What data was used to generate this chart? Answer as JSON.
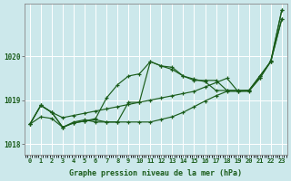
{
  "background_color": "#cce8eb",
  "grid_color": "#ffffff",
  "line_color": "#1a5c1a",
  "marker_color": "#1a5c1a",
  "xlabel": "Graphe pression niveau de la mer (hPa)",
  "xlabel_color": "#1a5c1a",
  "ylabel_color": "#1a5c1a",
  "xlim": [
    -0.5,
    23.5
  ],
  "ylim": [
    1017.75,
    1021.2
  ],
  "yticks": [
    1018,
    1019,
    1020
  ],
  "xticks": [
    0,
    1,
    2,
    3,
    4,
    5,
    6,
    7,
    8,
    9,
    10,
    11,
    12,
    13,
    14,
    15,
    16,
    17,
    18,
    19,
    20,
    21,
    22,
    23
  ],
  "series": [
    {
      "x": [
        0,
        1,
        2,
        3,
        4,
        5,
        6,
        7,
        8,
        9,
        10,
        11,
        12,
        13,
        14,
        15,
        16,
        17,
        18,
        19,
        20,
        21,
        22,
        23
      ],
      "y": [
        1018.45,
        1018.88,
        1018.72,
        1018.6,
        1018.65,
        1018.7,
        1018.75,
        1018.8,
        1018.85,
        1018.9,
        1018.95,
        1019.0,
        1019.05,
        1019.1,
        1019.15,
        1019.2,
        1019.3,
        1019.4,
        1019.5,
        1019.2,
        1019.2,
        1019.5,
        1019.9,
        1021.05
      ]
    },
    {
      "x": [
        0,
        1,
        2,
        3,
        4,
        5,
        6,
        7,
        8,
        9,
        10,
        11,
        12,
        13,
        14,
        15,
        16,
        17,
        18,
        19,
        20,
        21,
        22,
        23
      ],
      "y": [
        1018.45,
        1018.88,
        1018.72,
        1018.38,
        1018.48,
        1018.52,
        1018.58,
        1019.05,
        1019.35,
        1019.55,
        1019.6,
        1019.88,
        1019.78,
        1019.75,
        1019.55,
        1019.45,
        1019.45,
        1019.45,
        1019.22,
        1019.22,
        1019.22,
        1019.5,
        1019.88,
        1020.85
      ]
    },
    {
      "x": [
        0,
        1,
        2,
        3,
        4,
        5,
        6,
        7,
        8,
        9,
        10,
        11,
        12,
        13,
        14,
        15,
        16,
        17,
        18,
        19,
        20,
        21,
        22,
        23
      ],
      "y": [
        1018.45,
        1018.88,
        1018.72,
        1018.38,
        1018.48,
        1018.52,
        1018.55,
        1018.5,
        1018.5,
        1018.95,
        1018.95,
        1019.88,
        1019.78,
        1019.7,
        1019.55,
        1019.48,
        1019.42,
        1019.22,
        1019.22,
        1019.22,
        1019.22,
        1019.55,
        1019.88,
        1020.85
      ]
    },
    {
      "x": [
        0,
        1,
        2,
        3,
        4,
        5,
        6,
        7,
        8,
        9,
        10,
        11,
        12,
        13,
        14,
        15,
        16,
        17,
        18,
        19,
        20,
        21,
        22,
        23
      ],
      "y": [
        1018.45,
        1018.62,
        1018.58,
        1018.38,
        1018.5,
        1018.55,
        1018.5,
        1018.5,
        1018.5,
        1018.5,
        1018.5,
        1018.5,
        1018.56,
        1018.62,
        1018.72,
        1018.85,
        1018.98,
        1019.1,
        1019.2,
        1019.2,
        1019.22,
        1019.55,
        1019.88,
        1021.05
      ]
    }
  ]
}
